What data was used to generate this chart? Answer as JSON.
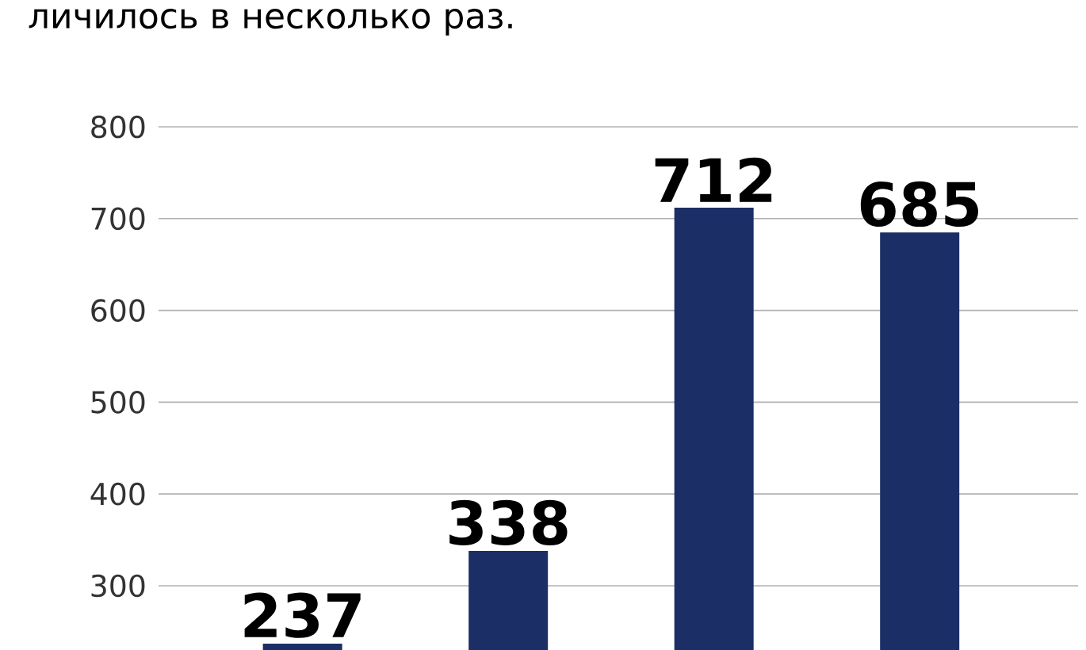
{
  "chart_data": {
    "type": "bar",
    "title": "личилось в несколько раз.",
    "categories": [
      null,
      null,
      null,
      null
    ],
    "values": [
      237,
      338,
      712,
      685
    ],
    "color": "#1b2f66",
    "ylim": [
      230,
      800
    ],
    "yticks": [
      300,
      400,
      500,
      600,
      700,
      800
    ],
    "grid": "y",
    "data_labels": true
  }
}
